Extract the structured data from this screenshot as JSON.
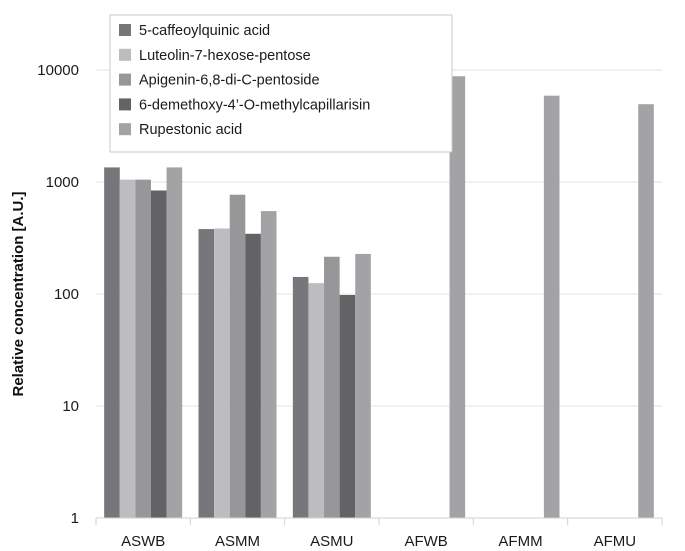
{
  "chart_data": {
    "type": "bar",
    "ylabel": "Relative concentration [A.U.]",
    "xlabel": "",
    "yscale": "log",
    "ylim": [
      1,
      10000
    ],
    "yticks": [
      "1",
      "10",
      "100",
      "1000",
      "10000"
    ],
    "grid": true,
    "legend_position": "top-left",
    "categories": [
      "ASWB",
      "ASMM",
      "ASMU",
      "AFWB",
      "AFMM",
      "AFMU"
    ],
    "series": [
      {
        "name": "5-caffeoylquinic acid",
        "color": "#77777b",
        "values": [
          1350,
          380,
          142,
          null,
          null,
          null
        ]
      },
      {
        "name": "Luteolin-7-hexose-pentose",
        "color": "#bdbdbf",
        "values": [
          1050,
          385,
          125,
          null,
          null,
          null
        ]
      },
      {
        "name": "Apigenin-6,8-di-C-pentoside",
        "color": "#97979a",
        "values": [
          1050,
          770,
          215,
          null,
          null,
          null
        ]
      },
      {
        "name": "6-demethoxy-4’-O-methylcapillarisin",
        "color": "#636366",
        "values": [
          840,
          345,
          98,
          null,
          null,
          null
        ]
      },
      {
        "name": "Rupestonic acid",
        "color": "#a3a3a6",
        "values": [
          1350,
          550,
          228,
          8800,
          5900,
          4950
        ]
      }
    ]
  }
}
